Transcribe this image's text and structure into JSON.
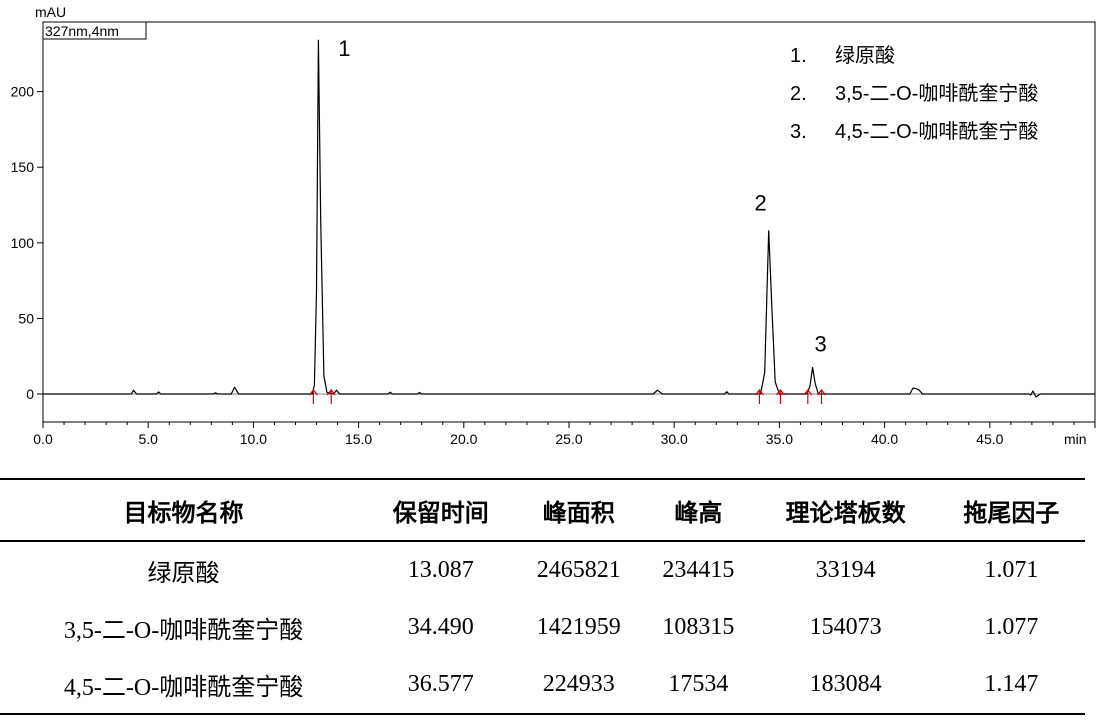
{
  "chart_data": {
    "type": "line",
    "detector_label": "327nm,4nm",
    "ylabel": "mAU",
    "xlabel": "min",
    "xlim": [
      0,
      50
    ],
    "ylim": [
      -10,
      235
    ],
    "xticks": [
      0.0,
      5.0,
      10.0,
      15.0,
      20.0,
      25.0,
      30.0,
      35.0,
      40.0,
      45.0
    ],
    "xtick_labels": [
      "0.0",
      "5.0",
      "10.0",
      "15.0",
      "20.0",
      "25.0",
      "30.0",
      "35.0",
      "40.0",
      "45.0"
    ],
    "yticks": [
      0,
      50,
      100,
      150,
      200
    ],
    "ytick_labels": [
      "0",
      "50",
      "100",
      "150",
      "200"
    ],
    "series": [
      {
        "x": [
          0,
          4.2,
          4.3,
          4.45,
          5.4,
          5.5,
          5.6,
          8.1,
          8.2,
          8.3,
          8.95,
          9.1,
          9.3,
          12.8,
          12.9,
          13.0,
          13.087,
          13.2,
          13.35,
          13.5,
          13.8,
          13.95,
          14.1,
          16.4,
          16.5,
          16.6,
          17.8,
          17.9,
          18.0,
          29.0,
          29.2,
          29.45,
          32.4,
          32.5,
          32.6,
          34.1,
          34.3,
          34.49,
          34.65,
          34.8,
          35.0,
          36.3,
          36.45,
          36.577,
          36.7,
          36.85,
          41.2,
          41.35,
          41.5,
          41.65,
          41.8,
          46.85,
          46.95,
          47.05,
          47.2,
          47.4,
          50
        ],
        "y": [
          0,
          0,
          2.5,
          0,
          0,
          1.4,
          0,
          0,
          0.8,
          0,
          0,
          4.5,
          0,
          0,
          6,
          68,
          234,
          115,
          12,
          1,
          0,
          2.5,
          0,
          0,
          1.2,
          0,
          0,
          1.0,
          0,
          0,
          2.5,
          0,
          0,
          1.5,
          0,
          0,
          14,
          108,
          55,
          8,
          0,
          0,
          5,
          17.5,
          7,
          0,
          0,
          4,
          3.5,
          2.5,
          0,
          0,
          -0.6,
          2,
          -2,
          0,
          0
        ]
      }
    ],
    "peaks": [
      {
        "label": "1",
        "x": 13.087,
        "y": 234
      },
      {
        "label": "2",
        "x": 34.49,
        "y": 108
      },
      {
        "label": "3",
        "x": 36.577,
        "y": 17.5
      }
    ],
    "integration_marks": [
      12.85,
      13.7,
      34.05,
      35.05,
      36.35,
      37.0
    ],
    "legend": [
      {
        "num": "1.",
        "name": "绿原酸"
      },
      {
        "num": "2.",
        "name": "3,5-二-O-咖啡酰奎宁酸"
      },
      {
        "num": "3.",
        "name": "4,5-二-O-咖啡酰奎宁酸"
      }
    ],
    "legend_placement": "top-right",
    "grid": false,
    "colors": {
      "trace": "#000000",
      "baseline": "#808080",
      "marks": "#e00000"
    }
  },
  "table": {
    "headers": [
      "目标物名称",
      "保留时间",
      "峰面积",
      "峰高",
      "理论塔板数",
      "拖尾因子"
    ],
    "rows": [
      [
        "绿原酸",
        "13.087",
        "2465821",
        "234415",
        "33194",
        "1.071"
      ],
      [
        "3,5-二-O-咖啡酰奎宁酸",
        "34.490",
        "1421959",
        "108315",
        "154073",
        "1.077"
      ],
      [
        "4,5-二-O-咖啡酰奎宁酸",
        "36.577",
        "224933",
        "17534",
        "183084",
        "1.147"
      ]
    ]
  }
}
